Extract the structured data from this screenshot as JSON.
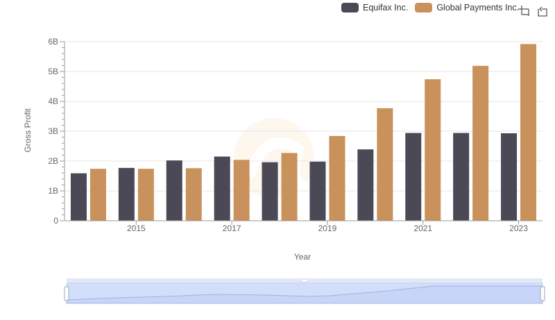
{
  "legend": {
    "items": [
      {
        "label": "Equifax Inc.",
        "color": "#4a4955"
      },
      {
        "label": "Global Payments Inc.",
        "color": "#c9915b"
      }
    ]
  },
  "toolbar": {
    "icons": [
      "zoom-crosshair-icon",
      "zoom-reset-icon"
    ]
  },
  "chart_data": {
    "type": "bar",
    "xlabel": "Year",
    "ylabel": "Gross Profit",
    "categories": [
      "2014",
      "2015",
      "2016",
      "2017",
      "2018",
      "2019",
      "2020",
      "2021",
      "2022",
      "2023"
    ],
    "x_tick_labels": [
      "2015",
      "2017",
      "2019",
      "2021",
      "2023"
    ],
    "y_ticks": [
      0,
      1000000000,
      2000000000,
      3000000000,
      4000000000,
      5000000000,
      6000000000
    ],
    "y_tick_labels": [
      "0",
      "1B",
      "2B",
      "3B",
      "4B",
      "5B",
      "6B"
    ],
    "ylim": [
      0,
      6000000000
    ],
    "grid": true,
    "legend_position": "top-right",
    "series": [
      {
        "name": "Equifax Inc.",
        "color": "#4a4955",
        "values": [
          1590000000,
          1770000000,
          2020000000,
          2150000000,
          1960000000,
          1980000000,
          2390000000,
          2940000000,
          2940000000,
          2930000000
        ]
      },
      {
        "name": "Global Payments Inc.",
        "color": "#c9915b",
        "values": [
          1740000000,
          1740000000,
          1760000000,
          2040000000,
          2270000000,
          2840000000,
          3770000000,
          4740000000,
          5190000000,
          5920000000
        ]
      }
    ]
  }
}
